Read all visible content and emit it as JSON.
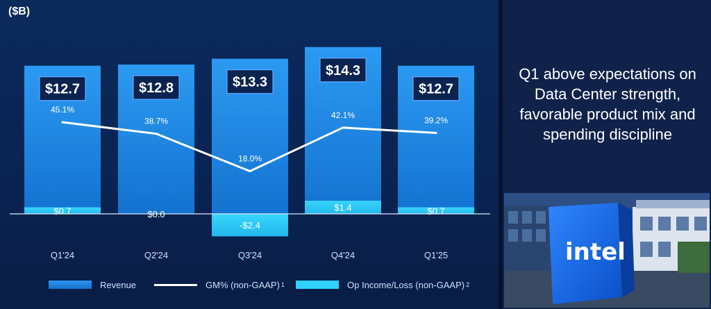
{
  "unit_label": "($B)",
  "headline": "Q1 above expectations on Data Center strength, favorable product mix and spending discipline",
  "photo": {
    "logo_text": "intel"
  },
  "colors": {
    "revenue": "#1a84e0",
    "gm_line": "#ffffff",
    "op_income": "#2fd0ff",
    "background": "#0b2a5c"
  },
  "legend": [
    {
      "label": "Revenue",
      "footnote": ""
    },
    {
      "label": "GM% (non-GAAP)",
      "footnote": "1"
    },
    {
      "label": "Op Income/Loss (non-GAAP)",
      "footnote": "2"
    }
  ],
  "chart_data": {
    "type": "bar",
    "categories": [
      "Q1'24",
      "Q2'24",
      "Q3'24",
      "Q4'24",
      "Q1'25"
    ],
    "series": [
      {
        "name": "Revenue",
        "type": "bar",
        "values": [
          12.7,
          12.8,
          13.3,
          14.3,
          12.7
        ],
        "labels": [
          "$12.7",
          "$12.8",
          "$13.3",
          "$14.3",
          "$12.7"
        ]
      },
      {
        "name": "GM% (non-GAAP)",
        "type": "line",
        "values": [
          45.1,
          38.7,
          18.0,
          42.1,
          39.2
        ],
        "labels": [
          "45.1%",
          "38.7%",
          "18.0%",
          "42.1%",
          "39.2%"
        ]
      },
      {
        "name": "Op Income/Loss (non-GAAP)",
        "type": "bar",
        "values": [
          0.7,
          0.0,
          -2.4,
          1.4,
          0.7
        ],
        "labels": [
          "$0.7",
          "$0.0",
          "-$2.4",
          "$1.4",
          "$0.7"
        ]
      }
    ],
    "ylabel": "($B)",
    "legend_position": "bottom"
  }
}
